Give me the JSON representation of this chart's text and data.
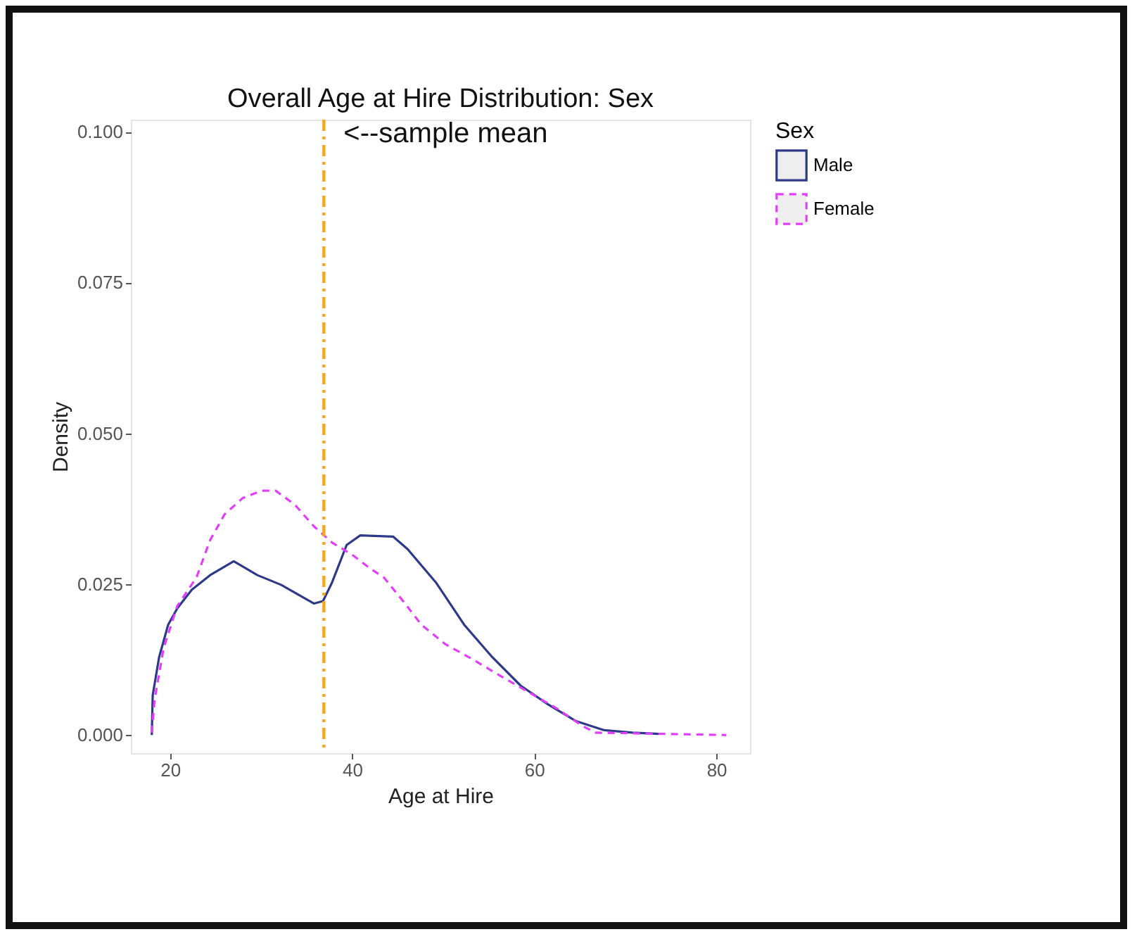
{
  "chart_data": {
    "type": "line",
    "title": "Overall Age at Hire Distribution: Sex",
    "xlabel": "Age at Hire",
    "ylabel": "Density",
    "legend_title": "Sex",
    "legend": "right",
    "grid": false,
    "xlim": [
      15.7,
      83.7
    ],
    "xticks": [
      20,
      40,
      60,
      80
    ],
    "ylim": [
      -0.003,
      0.102
    ],
    "yticks": [
      {
        "value": 0,
        "label": "0.000"
      },
      {
        "value": 0.025,
        "label": "0.025"
      },
      {
        "value": 0.05,
        "label": "0.050"
      },
      {
        "value": 0.075,
        "label": "0.075"
      },
      {
        "value": 0.1,
        "label": "0.100"
      }
    ],
    "series": [
      {
        "name": "Male",
        "color": "#2e3a87",
        "line_style": "solid",
        "x": [
          18.0,
          18.1,
          18.8,
          19.8,
          20.8,
          22.4,
          24.4,
          27.0,
          29.6,
          32.2,
          35.8,
          36.8,
          37.8,
          39.4,
          40.9,
          44.5,
          46.1,
          49.2,
          52.3,
          55.4,
          58.5,
          61.5,
          64.6,
          67.7,
          70.8,
          73.7
        ],
        "values": [
          0,
          0.0066,
          0.0129,
          0.0183,
          0.021,
          0.0241,
          0.0265,
          0.0288,
          0.0265,
          0.0249,
          0.0218,
          0.0222,
          0.0253,
          0.0315,
          0.0331,
          0.0329,
          0.0308,
          0.0253,
          0.0183,
          0.0129,
          0.0082,
          0.0051,
          0.0023,
          0.0008,
          0.0004,
          0.0002
        ]
      },
      {
        "name": "Female",
        "color": "#e040fb",
        "line_style": "dashed",
        "x": [
          18.0,
          18.3,
          19.3,
          20.8,
          22.9,
          24.4,
          26.0,
          28.0,
          30.1,
          31.6,
          33.7,
          35.8,
          37.8,
          39.9,
          42.0,
          43.5,
          45.6,
          47.6,
          50.2,
          53.3,
          56.4,
          59.5,
          62.6,
          65.2,
          66.7,
          81.1
        ],
        "values": [
          0.0004,
          0.0058,
          0.0144,
          0.0214,
          0.0261,
          0.0323,
          0.0366,
          0.0393,
          0.0405,
          0.0405,
          0.0382,
          0.0346,
          0.0319,
          0.03,
          0.0276,
          0.0261,
          0.0222,
          0.0183,
          0.0151,
          0.0125,
          0.0097,
          0.007,
          0.0043,
          0.0016,
          0.0004,
          0
        ]
      }
    ],
    "ref_lines": [
      {
        "axis": "x",
        "value": 36.9,
        "label": "<--sample mean",
        "color": "#f5a623",
        "line_style": "dashdot"
      }
    ]
  }
}
